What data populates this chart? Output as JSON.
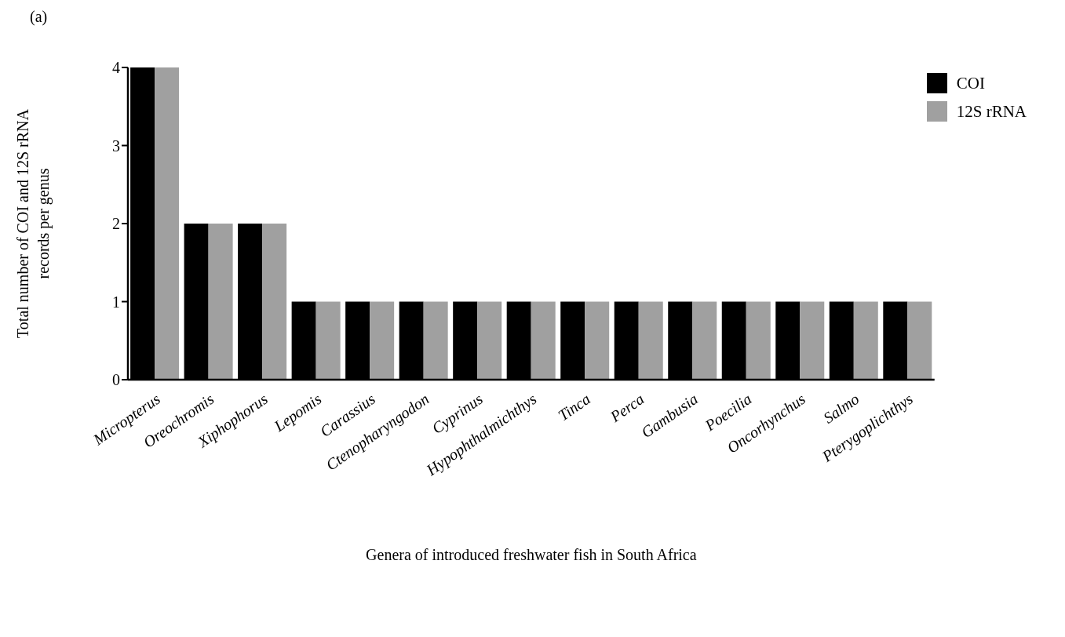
{
  "chart_data": {
    "type": "bar",
    "annotations": [
      "(a)"
    ],
    "xlabel": "Genera of introduced freshwater fish in South Africa",
    "ylabel": "Total number of COI and 12S rRNA records per genus",
    "categories": [
      "Micropterus",
      "Oreochromis",
      "Xiphophorus",
      "Lepomis",
      "Carassius",
      "Ctenopharyngodon",
      "Cyprinus",
      "Hypophthalmichthys",
      "Tinca",
      "Perca",
      "Gambusia",
      "Poecilia",
      "Oncorhynchus",
      "Salmo",
      "Pterygoplichthys"
    ],
    "series": [
      {
        "name": "COI",
        "color": "#000000",
        "values": [
          4,
          2,
          2,
          1,
          1,
          1,
          1,
          1,
          1,
          1,
          1,
          1,
          1,
          1,
          1
        ]
      },
      {
        "name": "12S rRNA",
        "color": "#a0a0a0",
        "values": [
          4,
          2,
          2,
          1,
          1,
          1,
          1,
          1,
          1,
          1,
          1,
          1,
          1,
          1,
          1
        ]
      }
    ],
    "ylim": [
      0,
      4
    ],
    "yticks": [
      0,
      1,
      2,
      3,
      4
    ],
    "grid": false,
    "legend": "top right"
  }
}
